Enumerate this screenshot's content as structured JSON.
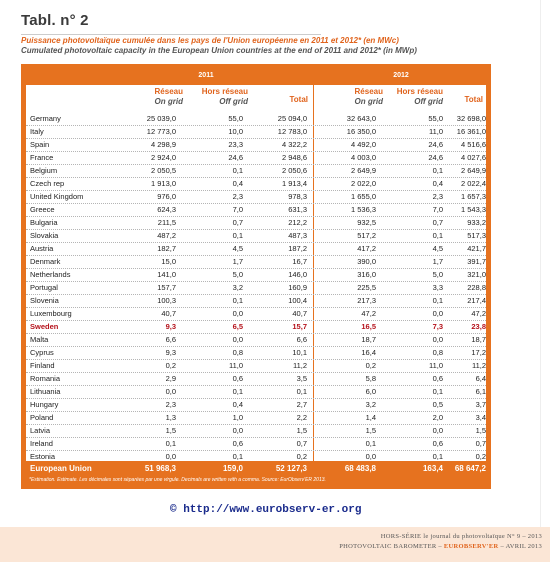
{
  "title": "Tabl. n° 2",
  "subtitle_fr": "Puissance photovoltaïque cumulée dans les pays de l'Union européenne en 2011 et 2012* (en MWc)",
  "subtitle_en": "Cumulated photovoltaic capacity in the European Union countries at the end of 2011 and 2012* (in MWp)",
  "years": [
    "2011",
    "2012"
  ],
  "headers": {
    "on_grid_fr": "Réseau",
    "on_grid_en": "On grid",
    "off_grid_fr": "Hors réseau",
    "off_grid_en": "Off grid",
    "total": "Total"
  },
  "rows": [
    {
      "country": "Germany",
      "a": "25 039,0",
      "b": "55,0",
      "c": "25 094,0",
      "d": "32 643,0",
      "e": "55,0",
      "f": "32 698,0"
    },
    {
      "country": "Italy",
      "a": "12 773,0",
      "b": "10,0",
      "c": "12 783,0",
      "d": "16 350,0",
      "e": "11,0",
      "f": "16 361,0"
    },
    {
      "country": "Spain",
      "a": "4 298,9",
      "b": "23,3",
      "c": "4 322,2",
      "d": "4 492,0",
      "e": "24,6",
      "f": "4 516,6"
    },
    {
      "country": "France",
      "a": "2 924,0",
      "b": "24,6",
      "c": "2 948,6",
      "d": "4 003,0",
      "e": "24,6",
      "f": "4 027,6"
    },
    {
      "country": "Belgium",
      "a": "2 050,5",
      "b": "0,1",
      "c": "2 050,6",
      "d": "2 649,9",
      "e": "0,1",
      "f": "2 649,9"
    },
    {
      "country": "Czech rep",
      "a": "1 913,0",
      "b": "0,4",
      "c": "1 913,4",
      "d": "2 022,0",
      "e": "0,4",
      "f": "2 022,4"
    },
    {
      "country": "United Kingdom",
      "a": "976,0",
      "b": "2,3",
      "c": "978,3",
      "d": "1 655,0",
      "e": "2,3",
      "f": "1 657,3"
    },
    {
      "country": "Greece",
      "a": "624,3",
      "b": "7,0",
      "c": "631,3",
      "d": "1 536,3",
      "e": "7,0",
      "f": "1 543,3"
    },
    {
      "country": "Bulgaria",
      "a": "211,5",
      "b": "0,7",
      "c": "212,2",
      "d": "932,5",
      "e": "0,7",
      "f": "933,2"
    },
    {
      "country": "Slovakia",
      "a": "487,2",
      "b": "0,1",
      "c": "487,3",
      "d": "517,2",
      "e": "0,1",
      "f": "517,3"
    },
    {
      "country": "Austria",
      "a": "182,7",
      "b": "4,5",
      "c": "187,2",
      "d": "417,2",
      "e": "4,5",
      "f": "421,7"
    },
    {
      "country": "Denmark",
      "a": "15,0",
      "b": "1,7",
      "c": "16,7",
      "d": "390,0",
      "e": "1,7",
      "f": "391,7"
    },
    {
      "country": "Netherlands",
      "a": "141,0",
      "b": "5,0",
      "c": "146,0",
      "d": "316,0",
      "e": "5,0",
      "f": "321,0"
    },
    {
      "country": "Portugal",
      "a": "157,7",
      "b": "3,2",
      "c": "160,9",
      "d": "225,5",
      "e": "3,3",
      "f": "228,8"
    },
    {
      "country": "Slovenia",
      "a": "100,3",
      "b": "0,1",
      "c": "100,4",
      "d": "217,3",
      "e": "0,1",
      "f": "217,4"
    },
    {
      "country": "Luxembourg",
      "a": "40,7",
      "b": "0,0",
      "c": "40,7",
      "d": "47,2",
      "e": "0,0",
      "f": "47,2"
    },
    {
      "country": "Sweden",
      "a": "9,3",
      "b": "6,5",
      "c": "15,7",
      "d": "16,5",
      "e": "7,3",
      "f": "23,8",
      "highlight": true
    },
    {
      "country": "Malta",
      "a": "6,6",
      "b": "0,0",
      "c": "6,6",
      "d": "18,7",
      "e": "0,0",
      "f": "18,7"
    },
    {
      "country": "Cyprus",
      "a": "9,3",
      "b": "0,8",
      "c": "10,1",
      "d": "16,4",
      "e": "0,8",
      "f": "17,2"
    },
    {
      "country": "Finland",
      "a": "0,2",
      "b": "11,0",
      "c": "11,2",
      "d": "0,2",
      "e": "11,0",
      "f": "11,2"
    },
    {
      "country": "Romania",
      "a": "2,9",
      "b": "0,6",
      "c": "3,5",
      "d": "5,8",
      "e": "0,6",
      "f": "6,4"
    },
    {
      "country": "Lithuania",
      "a": "0,0",
      "b": "0,1",
      "c": "0,1",
      "d": "6,0",
      "e": "0,1",
      "f": "6,1"
    },
    {
      "country": "Hungary",
      "a": "2,3",
      "b": "0,4",
      "c": "2,7",
      "d": "3,2",
      "e": "0,5",
      "f": "3,7"
    },
    {
      "country": "Poland",
      "a": "1,3",
      "b": "1,0",
      "c": "2,2",
      "d": "1,4",
      "e": "2,0",
      "f": "3,4"
    },
    {
      "country": "Latvia",
      "a": "1,5",
      "b": "0,0",
      "c": "1,5",
      "d": "1,5",
      "e": "0,0",
      "f": "1,5"
    },
    {
      "country": "Ireland",
      "a": "0,1",
      "b": "0,6",
      "c": "0,7",
      "d": "0,1",
      "e": "0,6",
      "f": "0,7"
    },
    {
      "country": "Estonia",
      "a": "0,0",
      "b": "0,1",
      "c": "0,2",
      "d": "0,0",
      "e": "0,1",
      "f": "0,2"
    }
  ],
  "eu_total": {
    "country": "European Union",
    "a": "51 968,3",
    "b": "159,0",
    "c": "52 127,3",
    "d": "68 483,8",
    "e": "163,4",
    "f": "68 647,2"
  },
  "footnote": "*Estimation. Estimate. Les décimales sont séparées par une virgule. Decimals are written with a comma. Source: EurObserv'ER 2013.",
  "copyright": "© http://www.eurobserv-er.org",
  "bottom_line1_a": "HORS-SÉRIE  le journal du photovoltaïque  N° 9 – 2013",
  "bottom_line2_a": "PHOTOVOLTAIC BAROMETER – ",
  "bottom_line2_b": "EUROBSERV'ER",
  "bottom_line2_c": " – AVRIL 2013",
  "colors": {
    "accent": "#e6721f",
    "highlight": "#b5121b",
    "link": "#1a2b8c"
  }
}
